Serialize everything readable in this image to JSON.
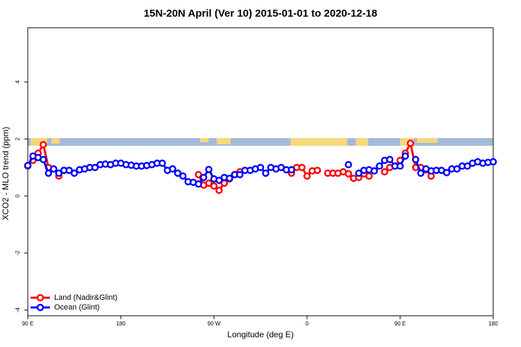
{
  "chart_data": {
    "type": "line",
    "title": "15N-20N April (Ver 10)   2015-01-01 to 2020-12-18",
    "x_label": "Longitude (deg E)",
    "y_label": "XCO2 - MLO trend (ppm)",
    "x": [
      90,
      95,
      100,
      105,
      110,
      115,
      120,
      125,
      130,
      135,
      140,
      145,
      150,
      155,
      160,
      165,
      170,
      175,
      180,
      185,
      190,
      195,
      200,
      205,
      210,
      215,
      220,
      225,
      230,
      235,
      240,
      245,
      250,
      255,
      260,
      265,
      270,
      275,
      280,
      285,
      290,
      295,
      300,
      305,
      310,
      315,
      320,
      325,
      330,
      335,
      340,
      345,
      350,
      355,
      360,
      365,
      370,
      375,
      380,
      385,
      390,
      395,
      400,
      405,
      410,
      415,
      420,
      425,
      430,
      435,
      440,
      445,
      450,
      455,
      460,
      465,
      470,
      475,
      480,
      485,
      490,
      495,
      500,
      505,
      510,
      515,
      520,
      525,
      530,
      535,
      540
    ],
    "series": [
      {
        "name": "Land (Nadir&Glint)",
        "color": "#ff0000",
        "values": [
          1.05,
          1.25,
          1.5,
          1.8,
          1.0,
          null,
          0.7,
          0.9,
          null,
          null,
          null,
          null,
          null,
          null,
          null,
          null,
          null,
          null,
          null,
          null,
          null,
          null,
          null,
          null,
          null,
          null,
          null,
          null,
          null,
          null,
          null,
          null,
          null,
          0.75,
          0.38,
          0.45,
          0.35,
          0.2,
          0.45,
          0.6,
          0.75,
          0.85,
          null,
          null,
          null,
          null,
          null,
          null,
          null,
          null,
          null,
          0.8,
          1.0,
          1.0,
          0.7,
          0.88,
          0.9,
          null,
          0.8,
          0.8,
          0.8,
          0.85,
          0.78,
          0.62,
          0.65,
          0.78,
          0.7,
          null,
          null,
          0.85,
          1.0,
          1.05,
          1.25,
          1.5,
          1.85,
          1.0,
          1.0,
          0.92,
          0.7,
          null,
          null,
          null,
          null,
          null,
          null,
          null,
          null,
          null,
          null,
          null,
          null
        ]
      },
      {
        "name": "Ocean (Glint)",
        "color": "#0000ff",
        "values": [
          1.07,
          1.4,
          1.35,
          1.28,
          0.8,
          0.95,
          0.8,
          0.9,
          0.9,
          0.8,
          0.92,
          0.95,
          1.0,
          1.0,
          1.1,
          1.12,
          1.1,
          1.15,
          1.15,
          1.1,
          1.08,
          1.05,
          1.05,
          1.07,
          1.1,
          1.15,
          1.15,
          0.9,
          0.95,
          0.8,
          0.7,
          0.5,
          0.48,
          0.42,
          0.65,
          0.93,
          0.6,
          0.55,
          0.65,
          0.62,
          0.75,
          0.75,
          0.9,
          0.9,
          0.95,
          1.0,
          0.8,
          1.0,
          0.95,
          1.0,
          0.92,
          0.92,
          null,
          null,
          null,
          null,
          null,
          null,
          null,
          null,
          null,
          null,
          1.1,
          null,
          0.8,
          0.9,
          0.92,
          0.88,
          1.05,
          1.25,
          1.28,
          1.05,
          1.05,
          1.4,
          null,
          1.28,
          0.8,
          0.95,
          0.88,
          0.9,
          0.9,
          0.82,
          0.95,
          0.95,
          1.05,
          1.05,
          1.15,
          1.2,
          1.15,
          1.18,
          1.2
        ]
      }
    ],
    "xlim": [
      90,
      540
    ],
    "xticks": [
      {
        "value": 90,
        "label": "90 E"
      },
      180,
      {
        "value": 270,
        "label": "90 W"
      },
      {
        "value": 360,
        "label": "0"
      },
      {
        "value": 450,
        "label": "90 E"
      },
      {
        "value": 540,
        "label": "180"
      }
    ],
    "ylim": [
      -4.2,
      5.9
    ],
    "yticks": [
      -4,
      -2,
      0,
      2,
      4
    ],
    "legend": "bottom-left"
  }
}
